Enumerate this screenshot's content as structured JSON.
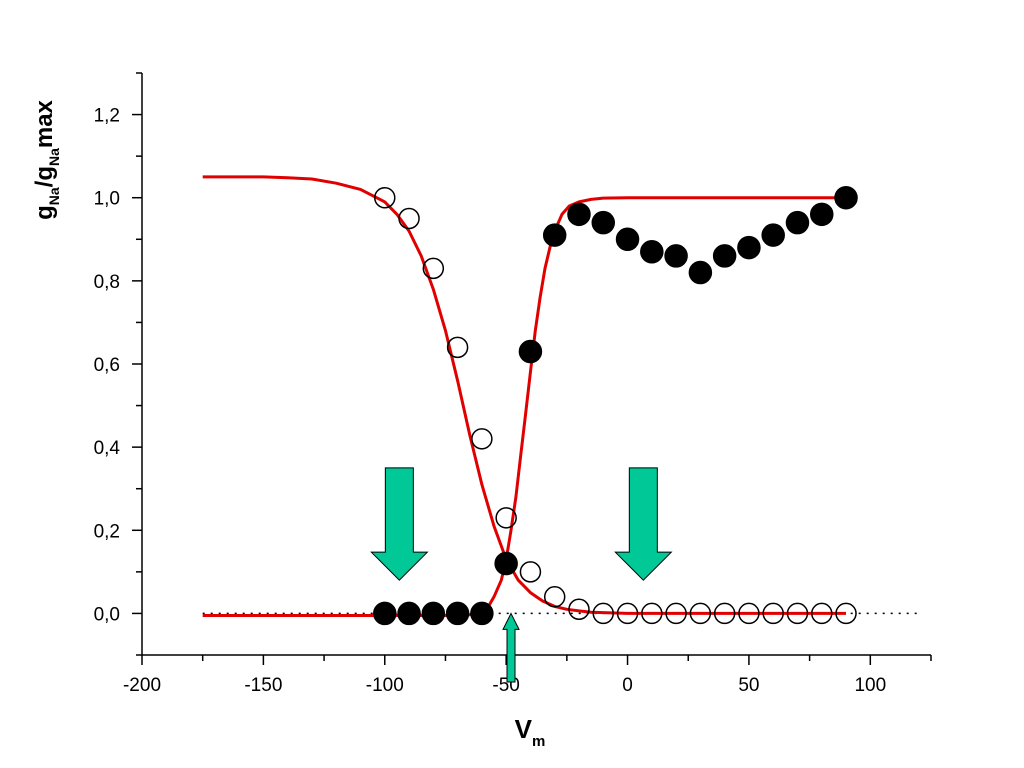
{
  "chart_data": {
    "type": "scatter",
    "title": "",
    "xlabel": {
      "main": "V",
      "sub": "m"
    },
    "ylabel": {
      "parts": [
        {
          "text": "g",
          "sub": false
        },
        {
          "text": "Na",
          "sub": true
        },
        {
          "text": "/g",
          "sub": false
        },
        {
          "text": "Na",
          "sub": true
        },
        {
          "text": "max",
          "sub": false
        }
      ]
    },
    "xlim": [
      -200,
      125
    ],
    "ylim": [
      -0.1,
      1.3
    ],
    "x_ticks": [
      -200,
      -150,
      -100,
      -50,
      0,
      50,
      100
    ],
    "x_tick_labels": [
      "-200",
      "-150",
      "-100",
      "-50",
      "0",
      "50",
      "100"
    ],
    "y_ticks": [
      0,
      0.2,
      0.4,
      0.6,
      0.8,
      1.0,
      1.2
    ],
    "y_tick_labels": [
      "0,0",
      "0,2",
      "0,4",
      "0,6",
      "0,8",
      "1,0",
      "1,2"
    ],
    "grid": false,
    "legend": "none",
    "reference_line": {
      "y": 0,
      "x_range": [
        -175,
        120
      ],
      "style": "dotted",
      "color": "#000000"
    },
    "series": [
      {
        "marker": "filled-circle",
        "color": "#000000",
        "x": [
          -100,
          -90,
          -80,
          -70,
          -60,
          -50,
          -40,
          -30,
          -20,
          -10,
          0,
          10,
          20,
          30,
          40,
          50,
          60,
          70,
          80,
          90
        ],
        "y": [
          0,
          0,
          0,
          0,
          0,
          0.12,
          0.63,
          0.91,
          0.96,
          0.94,
          0.9,
          0.87,
          0.86,
          0.82,
          0.86,
          0.88,
          0.91,
          0.94,
          0.96,
          1.0
        ]
      },
      {
        "marker": "open-circle",
        "color": "#000000",
        "x": [
          -100,
          -90,
          -80,
          -70,
          -60,
          -50,
          -40,
          -30,
          -20,
          -10,
          0,
          10,
          20,
          30,
          40,
          50,
          60,
          70,
          80,
          90
        ],
        "y": [
          1.0,
          0.95,
          0.83,
          0.64,
          0.42,
          0.23,
          0.1,
          0.04,
          0.01,
          0,
          0,
          0,
          0,
          0,
          0,
          0,
          0,
          0,
          0,
          0
        ]
      },
      {
        "marker": "line",
        "color": "#e00000",
        "fit": "inactivation",
        "x": [
          -175,
          -160,
          -150,
          -140,
          -130,
          -120,
          -110,
          -100,
          -95,
          -90,
          -85,
          -80,
          -75,
          -70,
          -65,
          -60,
          -55,
          -50,
          -45,
          -40,
          -35,
          -30,
          -25,
          -20,
          -15,
          -10,
          -5,
          0,
          10,
          20,
          30,
          40,
          50,
          60,
          70,
          80,
          90
        ],
        "y": [
          1.05,
          1.05,
          1.05,
          1.048,
          1.045,
          1.035,
          1.02,
          0.99,
          0.96,
          0.92,
          0.86,
          0.78,
          0.68,
          0.56,
          0.43,
          0.31,
          0.21,
          0.13,
          0.08,
          0.05,
          0.03,
          0.017,
          0.01,
          0.006,
          0.003,
          0.002,
          0.001,
          0,
          0,
          0,
          0,
          0,
          0,
          0,
          0,
          0,
          0
        ]
      },
      {
        "marker": "line",
        "color": "#e00000",
        "fit": "activation",
        "x": [
          -175,
          -100,
          -75,
          -65,
          -60,
          -57,
          -55,
          -52,
          -50,
          -48,
          -46,
          -44,
          -42,
          -40,
          -38,
          -36,
          -34,
          -32,
          -30,
          -27,
          -24,
          -20,
          -15,
          -10,
          0,
          20,
          40,
          60,
          90
        ],
        "y": [
          -0.005,
          -0.005,
          -0.005,
          -0.003,
          0.005,
          0.02,
          0.04,
          0.08,
          0.13,
          0.2,
          0.28,
          0.38,
          0.48,
          0.58,
          0.68,
          0.76,
          0.83,
          0.88,
          0.92,
          0.96,
          0.98,
          0.99,
          0.996,
          0.999,
          1.0,
          1.0,
          1.0,
          1.0,
          1.0
        ]
      }
    ],
    "annotations": [
      {
        "type": "arrow-down",
        "x": -94,
        "y_top": 0.35,
        "y_bottom": 0.08,
        "color": "#00c896"
      },
      {
        "type": "arrow-down",
        "x": 6.5,
        "y_top": 0.35,
        "y_bottom": 0.08,
        "color": "#00c896"
      },
      {
        "type": "arrow-up",
        "x": -48,
        "y_top": 0.0,
        "y_bottom": -0.165,
        "color": "#00c896"
      }
    ]
  }
}
